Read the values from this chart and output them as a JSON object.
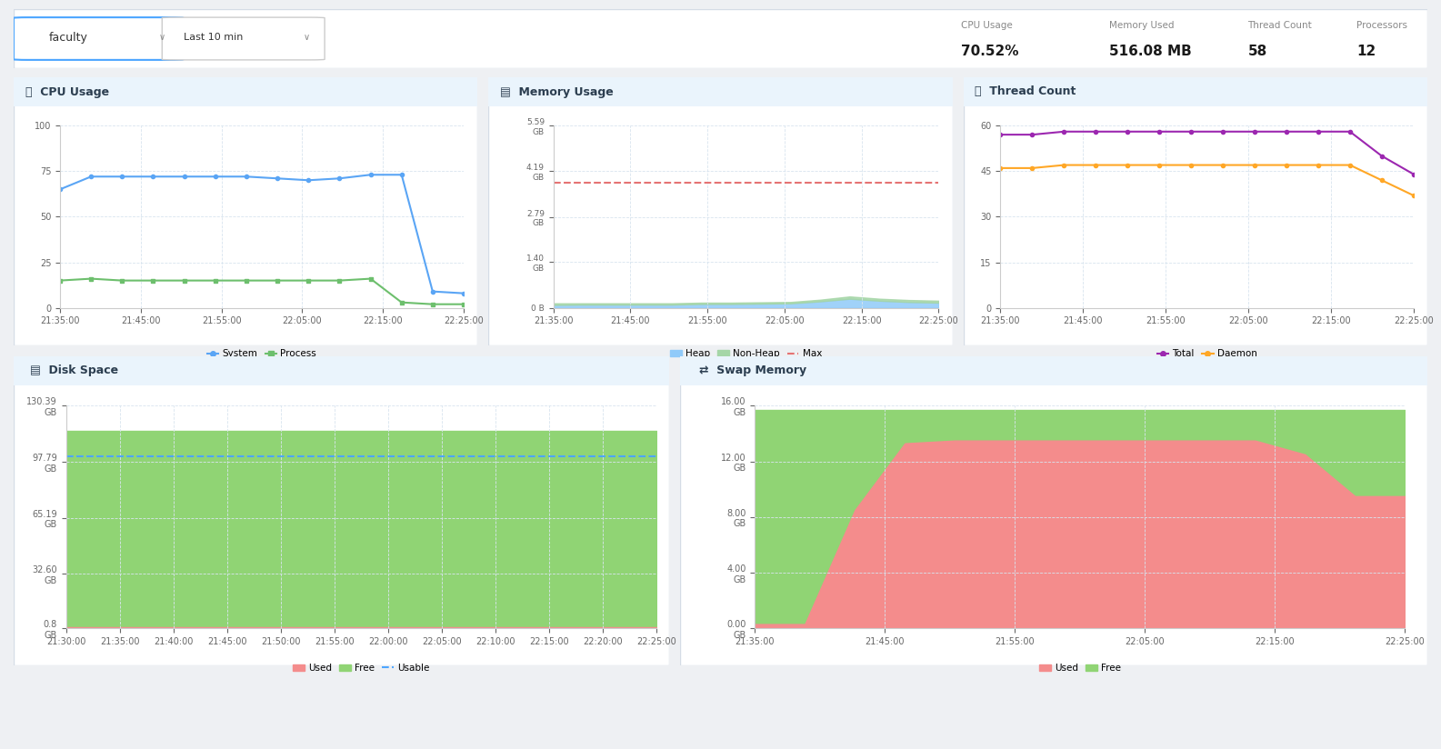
{
  "bg_color": "#eef0f3",
  "panel_bg": "#ffffff",
  "title_bar_color": "#eaf4fc",
  "border_color": "#d5dce6",
  "header": {
    "dropdown1": "faculty",
    "dropdown2": "Last 10 min",
    "metrics": [
      {
        "label": "CPU Usage",
        "value": "70.52%"
      },
      {
        "label": "Memory Used",
        "value": "516.08 MB"
      },
      {
        "label": "Thread Count",
        "value": "58"
      },
      {
        "label": "Processors",
        "value": "12"
      }
    ]
  },
  "cpu_usage": {
    "title": "CPU Usage",
    "xticks": [
      "21:35:00",
      "21:45:00",
      "21:55:00",
      "22:05:00",
      "22:15:00",
      "22:25:00"
    ],
    "ylim": [
      0,
      100
    ],
    "yticks": [
      0,
      25,
      50,
      75,
      100
    ],
    "system_color": "#5aa5f5",
    "process_color": "#6dbf6d",
    "x": [
      0,
      1,
      2,
      3,
      4,
      5,
      6,
      7,
      8,
      9,
      10,
      11,
      12,
      13
    ],
    "system_y": [
      65,
      72,
      72,
      72,
      72,
      72,
      72,
      71,
      70,
      71,
      73,
      73,
      9,
      8
    ],
    "process_y": [
      15,
      16,
      15,
      15,
      15,
      15,
      15,
      15,
      15,
      15,
      16,
      3,
      2,
      2
    ]
  },
  "memory_usage": {
    "title": "Memory Usage",
    "xticks": [
      "21:35:00",
      "21:45:00",
      "21:55:00",
      "22:05:00",
      "22:15:00",
      "22:25:00"
    ],
    "ytick_labels": [
      "0 B",
      "1.40\nGB",
      "2.79\nGB",
      "4.19\nGB",
      "5.59\nGB"
    ],
    "ytick_vals": [
      0,
      1.4,
      2.79,
      4.19,
      5.59
    ],
    "ylim": [
      0,
      5.59
    ],
    "heap_color": "#90caf9",
    "nonheap_color": "#a5d6a7",
    "max_color": "#e57373",
    "max_val": 3.85,
    "x": [
      0,
      1,
      2,
      3,
      4,
      5,
      6,
      7,
      8,
      9,
      10,
      11,
      12,
      13
    ],
    "heap_y": [
      0.09,
      0.1,
      0.1,
      0.1,
      0.1,
      0.12,
      0.12,
      0.13,
      0.14,
      0.2,
      0.28,
      0.22,
      0.18,
      0.16
    ],
    "nonheap_y": [
      0.14,
      0.14,
      0.14,
      0.14,
      0.14,
      0.16,
      0.16,
      0.17,
      0.18,
      0.25,
      0.35,
      0.28,
      0.24,
      0.22
    ]
  },
  "thread_count": {
    "title": "Thread Count",
    "xticks": [
      "21:35:00",
      "21:45:00",
      "21:55:00",
      "22:05:00",
      "22:15:00",
      "22:25:00"
    ],
    "ylim": [
      0,
      60
    ],
    "yticks": [
      0,
      15,
      30,
      45,
      60
    ],
    "total_color": "#9c27b0",
    "daemon_color": "#ffa726",
    "x": [
      0,
      1,
      2,
      3,
      4,
      5,
      6,
      7,
      8,
      9,
      10,
      11,
      12,
      13
    ],
    "total_y": [
      57,
      57,
      58,
      58,
      58,
      58,
      58,
      58,
      58,
      58,
      58,
      58,
      50,
      44
    ],
    "daemon_y": [
      46,
      46,
      47,
      47,
      47,
      47,
      47,
      47,
      47,
      47,
      47,
      47,
      42,
      37
    ]
  },
  "disk_space": {
    "title": "Disk Space",
    "xticks": [
      "21:30:00",
      "21:35:00",
      "21:40:00",
      "21:45:00",
      "21:50:00",
      "21:55:00",
      "22:00:00",
      "22:05:00",
      "22:10:00",
      "22:15:00",
      "22:20:00",
      "22:25:00"
    ],
    "ytick_labels": [
      "0.8\nGB",
      "32.60\nGB",
      "65.19\nGB",
      "97.79\nGB",
      "130.39\nGB"
    ],
    "ytick_vals": [
      0.8,
      32.6,
      65.19,
      97.79,
      130.39
    ],
    "ylim": [
      0.8,
      130.39
    ],
    "used_color": "#f48c8c",
    "free_color": "#90d474",
    "usable_color": "#4da6ff",
    "x": [
      0,
      1,
      2,
      3,
      4,
      5,
      6,
      7,
      8,
      9,
      10,
      11,
      12,
      13,
      14,
      15,
      16,
      17,
      18,
      19,
      20,
      21,
      22,
      23
    ],
    "used_y": [
      1.5,
      1.5,
      1.5,
      1.5,
      1.5,
      1.5,
      1.5,
      1.5,
      1.5,
      1.5,
      1.5,
      1.5,
      1.5,
      1.5,
      1.5,
      1.5,
      1.5,
      1.5,
      1.5,
      1.5,
      1.5,
      1.5,
      1.5,
      1.5
    ],
    "free_y": [
      116,
      116,
      116,
      116,
      116,
      116,
      116,
      116,
      116,
      116,
      116,
      116,
      116,
      116,
      116,
      116,
      116,
      116,
      116,
      116,
      116,
      116,
      116,
      116
    ],
    "usable_y": [
      101,
      101,
      101,
      101,
      101,
      101,
      101,
      101,
      101,
      101,
      101,
      101,
      101,
      101,
      101,
      101,
      101,
      101,
      101,
      101,
      101,
      101,
      101,
      101
    ]
  },
  "swap_memory": {
    "title": "Swap Memory",
    "xticks": [
      "21:35:00",
      "21:45:00",
      "21:55:00",
      "22:05:00",
      "22:15:00",
      "22:25:00"
    ],
    "ytick_labels": [
      "0.00\nGB",
      "4.00\nGB",
      "8.00\nGB",
      "12.00\nGB",
      "16.00\nGB"
    ],
    "ytick_vals": [
      0.0,
      4.0,
      8.0,
      12.0,
      16.0
    ],
    "ylim": [
      0,
      16
    ],
    "used_color": "#f48c8c",
    "free_color": "#90d474",
    "x": [
      0,
      1,
      2,
      3,
      4,
      5,
      6,
      7,
      8,
      9,
      10,
      11,
      12,
      13
    ],
    "free_y": [
      15.7,
      15.7,
      15.7,
      15.7,
      15.7,
      15.7,
      15.7,
      15.7,
      15.7,
      15.7,
      15.7,
      15.7,
      15.7,
      15.7
    ],
    "used_y": [
      0.3,
      0.3,
      8.5,
      13.3,
      13.5,
      13.5,
      13.5,
      13.5,
      13.5,
      13.5,
      13.5,
      12.5,
      9.5,
      9.5
    ]
  }
}
